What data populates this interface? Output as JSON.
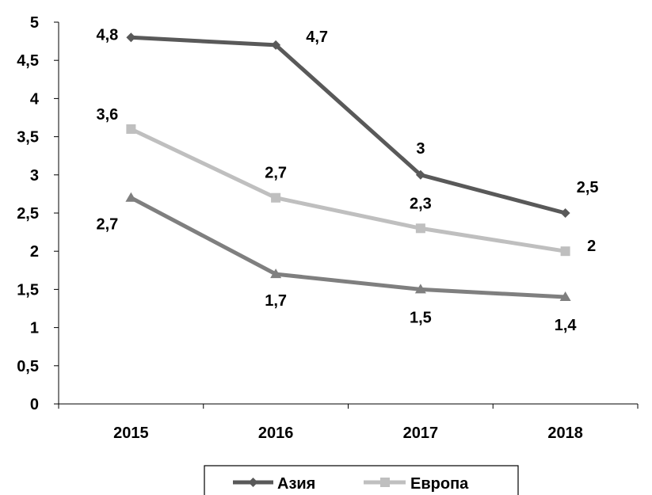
{
  "chart_data": {
    "type": "line",
    "categories": [
      "2015",
      "2016",
      "2017",
      "2018"
    ],
    "ylim": [
      0,
      5
    ],
    "yticks": [
      "0",
      "0,5",
      "1",
      "1,5",
      "2",
      "2,5",
      "3",
      "3,5",
      "4",
      "4,5",
      "5"
    ],
    "grid": false,
    "legend_position": "bottom",
    "series": [
      {
        "name": "Азия",
        "values": [
          4.8,
          4.7,
          3,
          2.5
        ],
        "labels": [
          "4,8",
          "4,7",
          "3",
          "2,5"
        ],
        "color": "#595959",
        "marker": "diamond",
        "in_legend": true
      },
      {
        "name": "Европа",
        "values": [
          3.6,
          2.7,
          2.3,
          2
        ],
        "labels": [
          "3,6",
          "2,7",
          "2,3",
          "2"
        ],
        "color": "#bfbfbf",
        "marker": "square",
        "in_legend": true
      },
      {
        "values": [
          2.7,
          1.7,
          1.5,
          1.4
        ],
        "labels": [
          "2,7",
          "1,7",
          "1,5",
          "1,4"
        ],
        "color": "#7f7f7f",
        "marker": "triangle",
        "in_legend": false
      }
    ]
  }
}
